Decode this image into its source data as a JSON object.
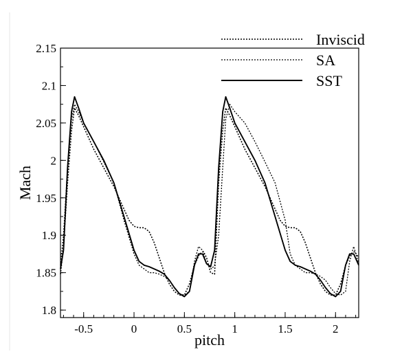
{
  "chart_data": {
    "type": "line",
    "xlabel": "pitch",
    "ylabel": "Mach",
    "xlim": [
      -0.73,
      2.23
    ],
    "ylim": [
      1.79,
      2.15
    ],
    "xticks": [
      -0.5,
      0,
      0.5,
      1,
      1.5,
      2
    ],
    "xtick_labels": [
      "-0.5",
      "0",
      "0.5",
      "1",
      "1.5",
      "2"
    ],
    "yticks": [
      1.8,
      1.85,
      1.9,
      1.95,
      2.0,
      2.05,
      2.1,
      2.15
    ],
    "ytick_labels": [
      "1.8",
      "1.85",
      "1.9",
      "1.95",
      "2",
      "2.05",
      "2.1",
      "2.15"
    ],
    "legend_position": "top-right",
    "grid": false,
    "series": [
      {
        "name": "Inviscid",
        "style": "dotted",
        "x": [
          -0.73,
          -0.7,
          -0.66,
          -0.62,
          -0.59,
          -0.55,
          -0.5,
          -0.4,
          -0.3,
          -0.2,
          -0.1,
          -0.05,
          0.0,
          0.05,
          0.1,
          0.15,
          0.2,
          0.25,
          0.3,
          0.35,
          0.4,
          0.45,
          0.5,
          0.55,
          0.6,
          0.65,
          0.69,
          0.72,
          0.76,
          0.8,
          0.84,
          0.88,
          0.91,
          0.95,
          1.0,
          1.1,
          1.2,
          1.3,
          1.4,
          1.45,
          1.5,
          1.55,
          1.6,
          1.65,
          1.7,
          1.75,
          1.8,
          1.85,
          1.9,
          1.95,
          2.0,
          2.05,
          2.1,
          2.15,
          2.19,
          2.23
        ],
        "y": [
          1.848,
          1.885,
          1.97,
          2.04,
          2.07,
          2.06,
          2.045,
          2.015,
          1.99,
          1.965,
          1.935,
          1.92,
          1.912,
          1.91,
          1.91,
          1.905,
          1.89,
          1.87,
          1.85,
          1.835,
          1.825,
          1.82,
          1.82,
          1.835,
          1.86,
          1.875,
          1.878,
          1.87,
          1.85,
          1.848,
          1.97,
          2.04,
          2.07,
          2.06,
          2.045,
          2.015,
          1.99,
          1.965,
          1.935,
          1.92,
          1.912,
          1.91,
          1.91,
          1.905,
          1.89,
          1.87,
          1.85,
          1.835,
          1.825,
          1.82,
          1.82,
          1.835,
          1.86,
          1.875,
          1.878,
          1.87
        ]
      },
      {
        "name": "SA",
        "style": "dotted",
        "x": [
          -0.73,
          -0.7,
          -0.66,
          -0.62,
          -0.59,
          -0.55,
          -0.5,
          -0.4,
          -0.3,
          -0.2,
          -0.1,
          0.0,
          0.05,
          0.1,
          0.15,
          0.2,
          0.25,
          0.3,
          0.35,
          0.4,
          0.45,
          0.5,
          0.55,
          0.6,
          0.64,
          0.68,
          0.72,
          0.77,
          0.8,
          0.84,
          0.88,
          0.91,
          0.95,
          1.0,
          1.1,
          1.2,
          1.3,
          1.4,
          1.5,
          1.55,
          1.6,
          1.65,
          1.7,
          1.75,
          1.8,
          1.85,
          1.9,
          1.95,
          2.0,
          2.05,
          2.1,
          2.14,
          2.18,
          2.23
        ],
        "y": [
          1.86,
          1.9,
          1.99,
          2.055,
          2.075,
          2.065,
          2.05,
          2.025,
          1.998,
          1.97,
          1.92,
          1.875,
          1.86,
          1.855,
          1.85,
          1.85,
          1.848,
          1.845,
          1.84,
          1.83,
          1.822,
          1.82,
          1.825,
          1.865,
          1.885,
          1.88,
          1.862,
          1.855,
          1.86,
          1.9,
          1.99,
          2.055,
          2.075,
          2.065,
          2.05,
          2.025,
          1.998,
          1.97,
          1.92,
          1.875,
          1.86,
          1.855,
          1.85,
          1.85,
          1.848,
          1.845,
          1.84,
          1.83,
          1.822,
          1.82,
          1.825,
          1.865,
          1.885,
          1.862
        ]
      },
      {
        "name": "SST",
        "style": "solid",
        "x": [
          -0.73,
          -0.7,
          -0.66,
          -0.62,
          -0.59,
          -0.55,
          -0.5,
          -0.4,
          -0.3,
          -0.2,
          -0.1,
          0.0,
          0.05,
          0.1,
          0.15,
          0.2,
          0.25,
          0.3,
          0.35,
          0.4,
          0.45,
          0.5,
          0.55,
          0.6,
          0.64,
          0.68,
          0.72,
          0.76,
          0.8,
          0.84,
          0.88,
          0.91,
          0.95,
          1.0,
          1.1,
          1.2,
          1.3,
          1.4,
          1.5,
          1.55,
          1.6,
          1.65,
          1.7,
          1.75,
          1.8,
          1.85,
          1.9,
          1.95,
          2.0,
          2.05,
          2.1,
          2.14,
          2.18,
          2.23
        ],
        "y": [
          1.855,
          1.88,
          1.99,
          2.065,
          2.085,
          2.07,
          2.05,
          2.025,
          2.0,
          1.97,
          1.925,
          1.88,
          1.865,
          1.86,
          1.858,
          1.855,
          1.852,
          1.848,
          1.84,
          1.83,
          1.822,
          1.818,
          1.825,
          1.86,
          1.875,
          1.875,
          1.862,
          1.858,
          1.88,
          1.99,
          2.065,
          2.085,
          2.07,
          2.05,
          2.025,
          2.0,
          1.97,
          1.925,
          1.88,
          1.865,
          1.86,
          1.858,
          1.855,
          1.852,
          1.848,
          1.84,
          1.83,
          1.822,
          1.818,
          1.825,
          1.86,
          1.875,
          1.875,
          1.86
        ]
      }
    ]
  }
}
